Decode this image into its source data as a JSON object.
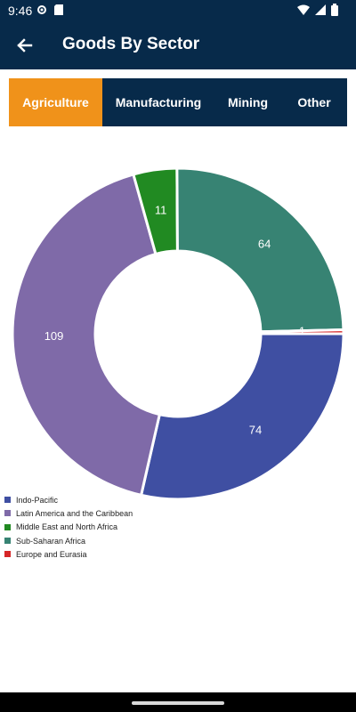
{
  "status_bar": {
    "time": "9:46"
  },
  "app_bar": {
    "title": "Goods By Sector"
  },
  "tabs": [
    {
      "label": "Agriculture",
      "active": true
    },
    {
      "label": "Manufacturing",
      "active": false
    },
    {
      "label": "Mining",
      "active": false
    },
    {
      "label": "Other",
      "active": false
    }
  ],
  "chart_data": {
    "type": "pie",
    "categories": [
      "Indo-Pacific",
      "Latin America and the Caribbean",
      "Middle East and North Africa",
      "Sub-Saharan Africa",
      "Europe and Eurasia"
    ],
    "values": [
      74,
      109,
      11,
      64,
      1
    ],
    "colors": [
      "#3f4fa2",
      "#7f6aa8",
      "#218a22",
      "#378373",
      "#d62728"
    ],
    "legend_position": "bottom-left"
  },
  "colors": {
    "header": "#072a4a",
    "accent": "#f0921a"
  }
}
